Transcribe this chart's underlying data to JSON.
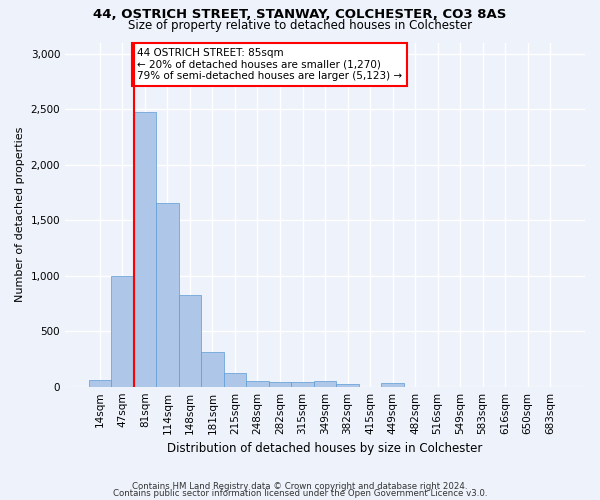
{
  "title1": "44, OSTRICH STREET, STANWAY, COLCHESTER, CO3 8AS",
  "title2": "Size of property relative to detached houses in Colchester",
  "xlabel": "Distribution of detached houses by size in Colchester",
  "ylabel": "Number of detached properties",
  "categories": [
    "14sqm",
    "47sqm",
    "81sqm",
    "114sqm",
    "148sqm",
    "181sqm",
    "215sqm",
    "248sqm",
    "282sqm",
    "315sqm",
    "349sqm",
    "382sqm",
    "415sqm",
    "449sqm",
    "482sqm",
    "516sqm",
    "549sqm",
    "583sqm",
    "616sqm",
    "650sqm",
    "683sqm"
  ],
  "values": [
    60,
    1000,
    2470,
    1650,
    830,
    310,
    120,
    50,
    45,
    45,
    50,
    25,
    0,
    30,
    0,
    0,
    0,
    0,
    0,
    0,
    0
  ],
  "bar_color": "#aec6e8",
  "bar_edge_color": "#5b9bd5",
  "vline_index": 2,
  "annotation_text": "44 OSTRICH STREET: 85sqm\n← 20% of detached houses are smaller (1,270)\n79% of semi-detached houses are larger (5,123) →",
  "annotation_box_color": "white",
  "annotation_box_edge_color": "red",
  "vline_color": "red",
  "ylim": [
    0,
    3100
  ],
  "yticks": [
    0,
    500,
    1000,
    1500,
    2000,
    2500,
    3000
  ],
  "footer1": "Contains HM Land Registry data © Crown copyright and database right 2024.",
  "footer2": "Contains public sector information licensed under the Open Government Licence v3.0.",
  "bg_color": "#eef2fb",
  "grid_color": "#ffffff",
  "title_fontsize": 9.5,
  "subtitle_fontsize": 8.5,
  "xlabel_fontsize": 8.5,
  "ylabel_fontsize": 8,
  "tick_fontsize": 7.5,
  "footer_fontsize": 6.2
}
